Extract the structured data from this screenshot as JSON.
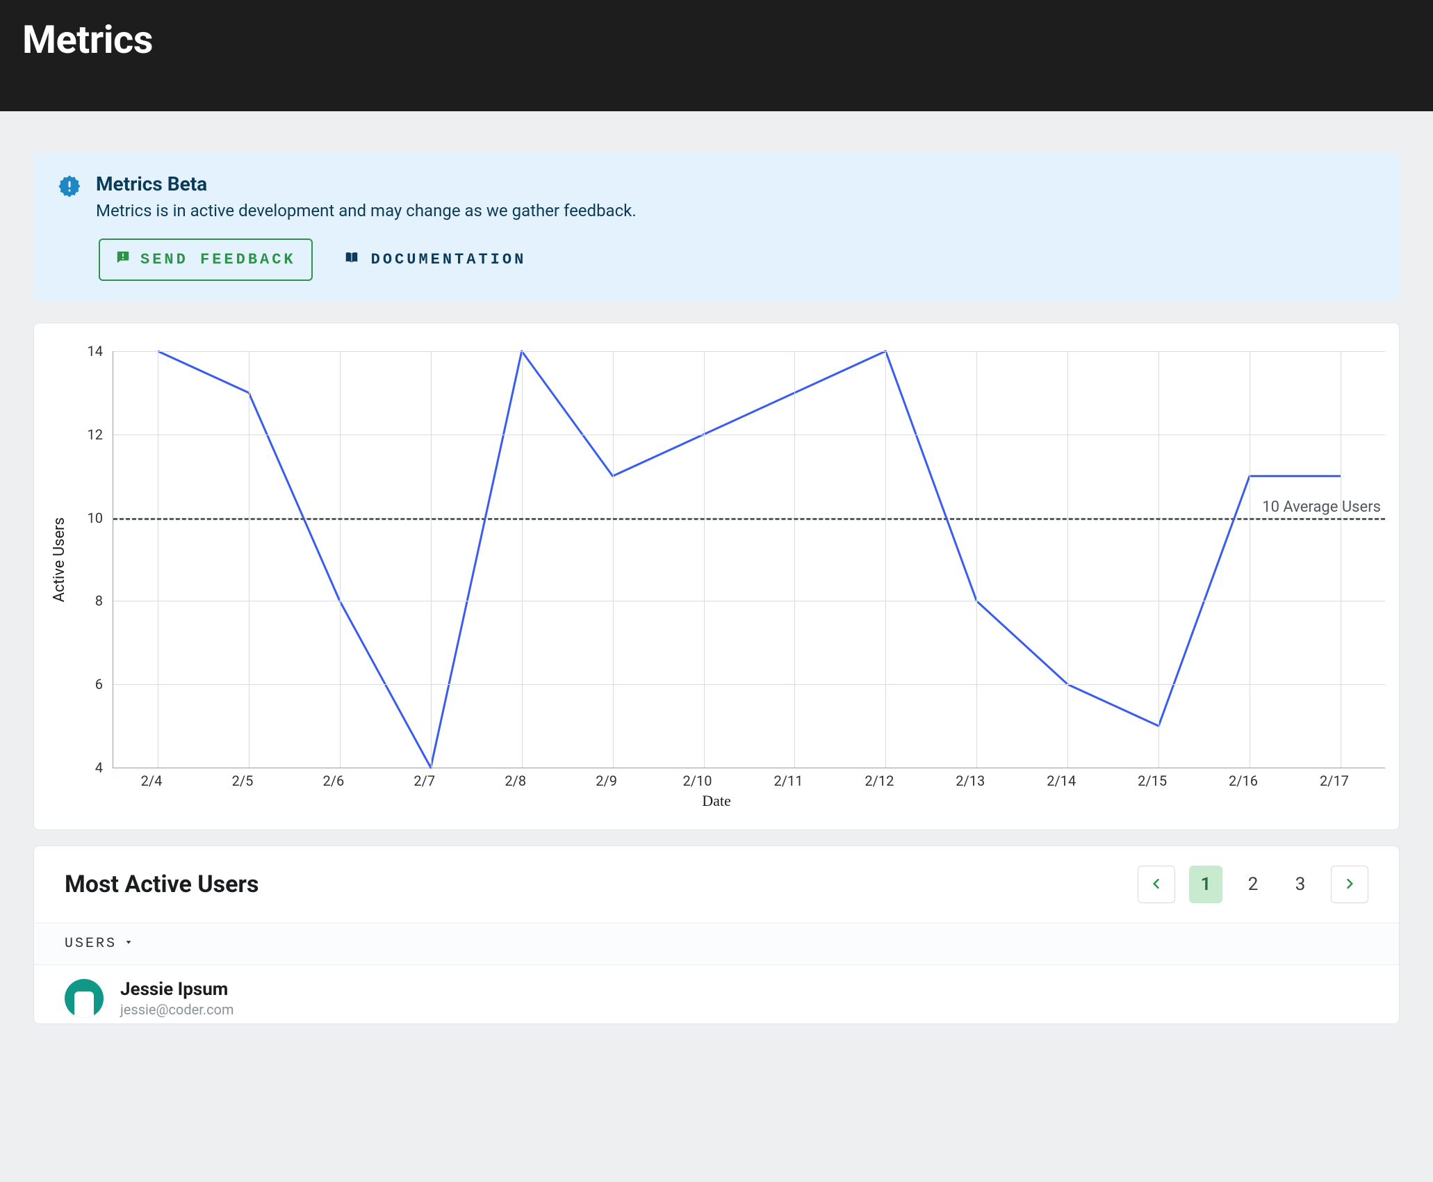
{
  "header": {
    "title": "Metrics"
  },
  "banner": {
    "title": "Metrics Beta",
    "description": "Metrics is in active development and may change as we gather feedback.",
    "feedback_label": "SEND FEEDBACK",
    "documentation_label": "DOCUMENTATION",
    "background_color": "#e3f2fd",
    "text_color": "#0b3a5a",
    "accent_color": "#2e9348",
    "badge_color": "#1e88c7"
  },
  "chart": {
    "type": "line",
    "ylabel": "Active Users",
    "xlabel": "Date",
    "categories": [
      "2/4",
      "2/5",
      "2/6",
      "2/7",
      "2/8",
      "2/9",
      "2/10",
      "2/11",
      "2/12",
      "2/13",
      "2/14",
      "2/15",
      "2/16",
      "2/17"
    ],
    "values": [
      14,
      13,
      8,
      4,
      14,
      11,
      12,
      13,
      14,
      8,
      6,
      5,
      11,
      11
    ],
    "ylim": [
      4,
      14
    ],
    "ytick_step": 2,
    "grid_color": "#d8dce0",
    "axis_color": "#9aa0a6",
    "line_color": "#3a5def",
    "line_width": 3,
    "average": {
      "value": 10,
      "label": "10 Average Users",
      "color": "#555d66",
      "dash": "8 8"
    },
    "background_color": "#ffffff",
    "label_fontsize": 22,
    "tick_fontsize": 20
  },
  "users_section": {
    "title": "Most Active Users",
    "column_label": "USERS",
    "pager": {
      "pages": [
        "1",
        "2",
        "3"
      ],
      "current_index": 0
    },
    "rows": [
      {
        "name": "Jessie Ipsum",
        "email": "jessie@coder.com"
      }
    ],
    "avatar_color": "#0f9788",
    "pager_accent": "#2e9348",
    "pager_current_bg": "#c8ebcf"
  }
}
